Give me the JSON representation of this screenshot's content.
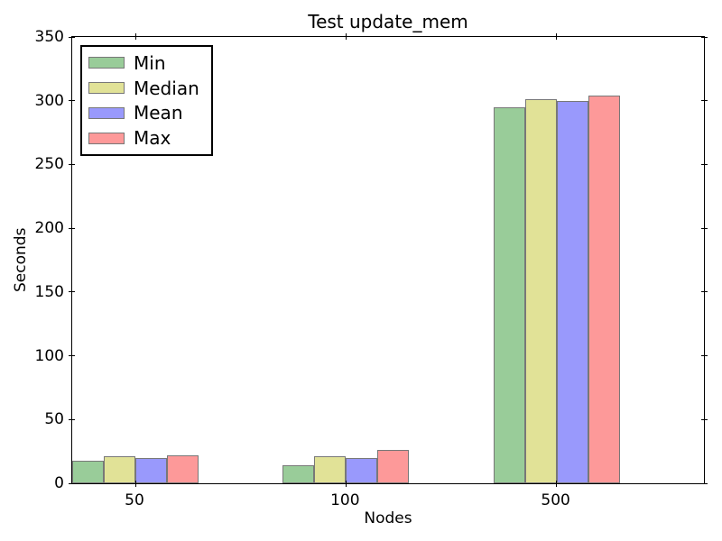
{
  "chart_data": {
    "type": "bar",
    "title": "Test update_mem",
    "xlabel": "Nodes",
    "ylabel": "Seconds",
    "categories": [
      "50",
      "100",
      "500"
    ],
    "series": [
      {
        "name": "Min",
        "color": "#99CC99",
        "values": [
          18,
          14,
          295
        ]
      },
      {
        "name": "Median",
        "color": "#E1E297",
        "values": [
          21,
          21,
          301
        ]
      },
      {
        "name": "Mean",
        "color": "#9999FC",
        "values": [
          20,
          20,
          300
        ]
      },
      {
        "name": "Max",
        "color": "#FD9999",
        "values": [
          22,
          26,
          304
        ]
      }
    ],
    "ylim": [
      0,
      350
    ],
    "yticks": [
      0,
      50,
      100,
      150,
      200,
      250,
      300,
      350
    ],
    "xlim": [
      0,
      3
    ],
    "bar_width_units": 0.15,
    "group_tick_offset_units": 0.3,
    "bar_edge_color": "#787878",
    "spine_color": "#000000",
    "legend_position": "upper left",
    "grid": false
  }
}
